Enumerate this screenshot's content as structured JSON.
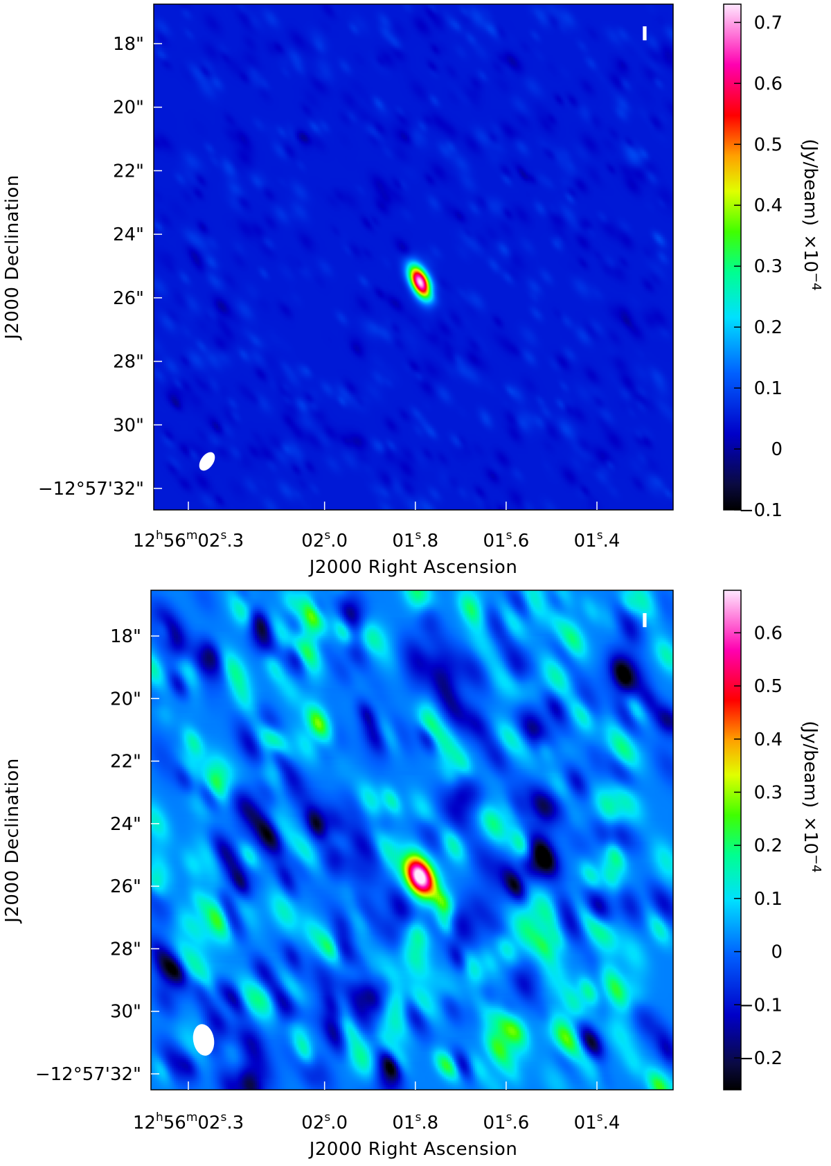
{
  "figure": {
    "panels": [
      {
        "id": "top",
        "stokes_label": "I",
        "y_axis_label": "J2000 Declination",
        "x_axis_label": "J2000 Right Ascension",
        "y_ticks": [
          {
            "text": "18\"",
            "value": 18
          },
          {
            "text": "20\"",
            "value": 20
          },
          {
            "text": "22\"",
            "value": 22
          },
          {
            "text": "24\"",
            "value": 24
          },
          {
            "text": "26\"",
            "value": 26
          },
          {
            "text": "28\"",
            "value": 28
          },
          {
            "text": "30\"",
            "value": 30
          },
          {
            "text": "−12°57'32\"",
            "value": 32
          }
        ],
        "x_ticks": [
          {
            "main": "12",
            "h": "h",
            "mid1": "56",
            "m": "m",
            "mid2": "02",
            "s": "s",
            "tail": ".3",
            "value": 2.3
          },
          {
            "main": "02",
            "s": "s",
            "tail": ".0",
            "value": 2.0
          },
          {
            "main": "01",
            "s": "s",
            "tail": ".8",
            "value": 1.8
          },
          {
            "main": "01",
            "s": "s",
            "tail": ".6",
            "value": 1.6
          },
          {
            "main": "01",
            "s": "s",
            "tail": ".4",
            "value": 1.4
          }
        ],
        "colorbar": {
          "label": "(Jy/beam)",
          "scale_base": "×10",
          "scale_exp": "−4",
          "min": -0.1,
          "max": 0.73,
          "ticks": [
            {
              "text": "0.7",
              "value": 0.7
            },
            {
              "text": "0.6",
              "value": 0.6
            },
            {
              "text": "0.5",
              "value": 0.5
            },
            {
              "text": "0.4",
              "value": 0.4
            },
            {
              "text": "0.3",
              "value": 0.3
            },
            {
              "text": "0.2",
              "value": 0.2
            },
            {
              "text": "0.1",
              "value": 0.1
            },
            {
              "text": "0",
              "value": 0
            },
            {
              "text": "−0.1",
              "value": -0.1
            }
          ]
        },
        "background_level": 0.05,
        "noise_amplitude": 0.03,
        "source": {
          "ra_s": 1.79,
          "dec": 25.5,
          "peak": 0.73
        },
        "beam_dec_arcsec": 31.2
      },
      {
        "id": "bottom",
        "stokes_label": "I",
        "y_axis_label": "J2000 Declination",
        "x_axis_label": "J2000 Right Ascension",
        "y_ticks": [
          {
            "text": "18\"",
            "value": 18
          },
          {
            "text": "20\"",
            "value": 20
          },
          {
            "text": "22\"",
            "value": 22
          },
          {
            "text": "24\"",
            "value": 24
          },
          {
            "text": "26\"",
            "value": 26
          },
          {
            "text": "28\"",
            "value": 28
          },
          {
            "text": "30\"",
            "value": 30
          },
          {
            "text": "−12°57'32\"",
            "value": 32
          }
        ],
        "x_ticks": [
          {
            "main": "12",
            "h": "h",
            "mid1": "56",
            "m": "m",
            "mid2": "02",
            "s": "s",
            "tail": ".3",
            "value": 2.3
          },
          {
            "main": "02",
            "s": "s",
            "tail": ".0",
            "value": 2.0
          },
          {
            "main": "01",
            "s": "s",
            "tail": ".8",
            "value": 1.8
          },
          {
            "main": "01",
            "s": "s",
            "tail": ".6",
            "value": 1.6
          },
          {
            "main": "01",
            "s": "s",
            "tail": ".4",
            "value": 1.4
          }
        ],
        "colorbar": {
          "label": "(Jy/beam)",
          "scale_base": "×10",
          "scale_exp": "−4",
          "min": -0.26,
          "max": 0.68,
          "ticks": [
            {
              "text": "0.6",
              "value": 0.6
            },
            {
              "text": "0.5",
              "value": 0.5
            },
            {
              "text": "0.4",
              "value": 0.4
            },
            {
              "text": "0.3",
              "value": 0.3
            },
            {
              "text": "0.2",
              "value": 0.2
            },
            {
              "text": "0.1",
              "value": 0.1
            },
            {
              "text": "0",
              "value": 0
            },
            {
              "text": "−0.1",
              "value": -0.1
            },
            {
              "text": "−0.2",
              "value": -0.2
            }
          ]
        },
        "background_level": 0.02,
        "noise_amplitude": 0.16,
        "source": {
          "ra_s": 1.79,
          "dec": 25.7,
          "peak": 0.68
        },
        "beam_dec_arcsec": 31.0
      }
    ]
  }
}
